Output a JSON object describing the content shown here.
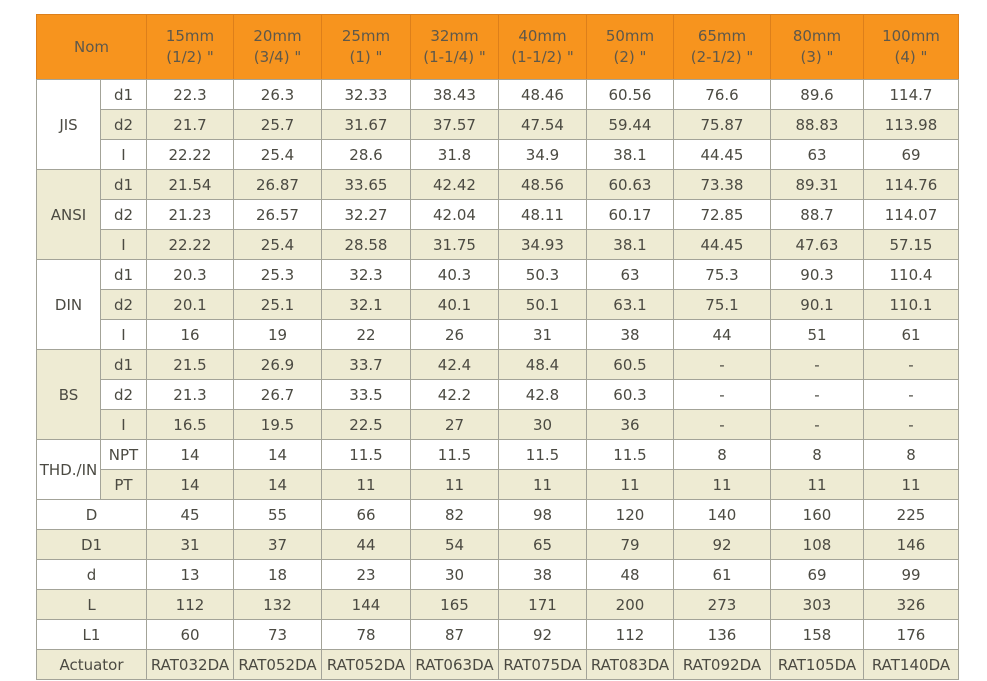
{
  "colors": {
    "header_bg": "#f7941e",
    "header_divider": "#dd7f1a",
    "row_alt_bg": "#eeebd3",
    "grid_line": "#a3a398",
    "text": "#4b4a42"
  },
  "header": {
    "nom_label": "Nom",
    "columns": [
      {
        "size": "15mm",
        "inch": "(1/2) \""
      },
      {
        "size": "20mm",
        "inch": "(3/4) \""
      },
      {
        "size": "25mm",
        "inch": "(1) \""
      },
      {
        "size": "32mm",
        "inch": "(1-1/4) \""
      },
      {
        "size": "40mm",
        "inch": "(1-1/2) \""
      },
      {
        "size": "50mm",
        "inch": "(2) \""
      },
      {
        "size": "65mm",
        "inch": "(2-1/2) \""
      },
      {
        "size": "80mm",
        "inch": "(3) \""
      },
      {
        "size": "100mm",
        "inch": "(4) \""
      }
    ]
  },
  "groups": [
    {
      "label": "JIS",
      "rows": [
        {
          "label": "d1",
          "values": [
            "22.3",
            "26.3",
            "32.33",
            "38.43",
            "48.46",
            "60.56",
            "76.6",
            "89.6",
            "114.7"
          ]
        },
        {
          "label": "d2",
          "values": [
            "21.7",
            "25.7",
            "31.67",
            "37.57",
            "47.54",
            "59.44",
            "75.87",
            "88.83",
            "113.98"
          ]
        },
        {
          "label": "I",
          "values": [
            "22.22",
            "25.4",
            "28.6",
            "31.8",
            "34.9",
            "38.1",
            "44.45",
            "63",
            "69"
          ]
        }
      ]
    },
    {
      "label": "ANSI",
      "rows": [
        {
          "label": "d1",
          "values": [
            "21.54",
            "26.87",
            "33.65",
            "42.42",
            "48.56",
            "60.63",
            "73.38",
            "89.31",
            "114.76"
          ]
        },
        {
          "label": "d2",
          "values": [
            "21.23",
            "26.57",
            "32.27",
            "42.04",
            "48.11",
            "60.17",
            "72.85",
            "88.7",
            "114.07"
          ]
        },
        {
          "label": "I",
          "values": [
            "22.22",
            "25.4",
            "28.58",
            "31.75",
            "34.93",
            "38.1",
            "44.45",
            "47.63",
            "57.15"
          ]
        }
      ]
    },
    {
      "label": "DIN",
      "rows": [
        {
          "label": "d1",
          "values": [
            "20.3",
            "25.3",
            "32.3",
            "40.3",
            "50.3",
            "63",
            "75.3",
            "90.3",
            "110.4"
          ]
        },
        {
          "label": "d2",
          "values": [
            "20.1",
            "25.1",
            "32.1",
            "40.1",
            "50.1",
            "63.1",
            "75.1",
            "90.1",
            "110.1"
          ]
        },
        {
          "label": "I",
          "values": [
            "16",
            "19",
            "22",
            "26",
            "31",
            "38",
            "44",
            "51",
            "61"
          ]
        }
      ]
    },
    {
      "label": "BS",
      "rows": [
        {
          "label": "d1",
          "values": [
            "21.5",
            "26.9",
            "33.7",
            "42.4",
            "48.4",
            "60.5",
            "-",
            "-",
            "-"
          ]
        },
        {
          "label": "d2",
          "values": [
            "21.3",
            "26.7",
            "33.5",
            "42.2",
            "42.8",
            "60.3",
            "-",
            "-",
            "-"
          ]
        },
        {
          "label": "I",
          "values": [
            "16.5",
            "19.5",
            "22.5",
            "27",
            "30",
            "36",
            "-",
            "-",
            "-"
          ]
        }
      ]
    },
    {
      "label": "THD./IN",
      "rows": [
        {
          "label": "NPT",
          "values": [
            "14",
            "14",
            "11.5",
            "11.5",
            "11.5",
            "11.5",
            "8",
            "8",
            "8"
          ]
        },
        {
          "label": "PT",
          "values": [
            "14",
            "14",
            "11",
            "11",
            "11",
            "11",
            "11",
            "11",
            "11"
          ]
        }
      ]
    }
  ],
  "singles": [
    {
      "label": "D",
      "values": [
        "45",
        "55",
        "66",
        "82",
        "98",
        "120",
        "140",
        "160",
        "225"
      ]
    },
    {
      "label": "D1",
      "values": [
        "31",
        "37",
        "44",
        "54",
        "65",
        "79",
        "92",
        "108",
        "146"
      ]
    },
    {
      "label": "d",
      "values": [
        "13",
        "18",
        "23",
        "30",
        "38",
        "48",
        "61",
        "69",
        "99"
      ]
    },
    {
      "label": "L",
      "values": [
        "112",
        "132",
        "144",
        "165",
        "171",
        "200",
        "273",
        "303",
        "326"
      ]
    },
    {
      "label": "L1",
      "values": [
        "60",
        "73",
        "78",
        "87",
        "92",
        "112",
        "136",
        "158",
        "176"
      ]
    },
    {
      "label": "Actuator",
      "values": [
        "RAT032DA",
        "RAT052DA",
        "RAT052DA",
        "RAT063DA",
        "RAT075DA",
        "RAT083DA",
        "RAT092DA",
        "RAT105DA",
        "RAT140DA"
      ]
    }
  ]
}
